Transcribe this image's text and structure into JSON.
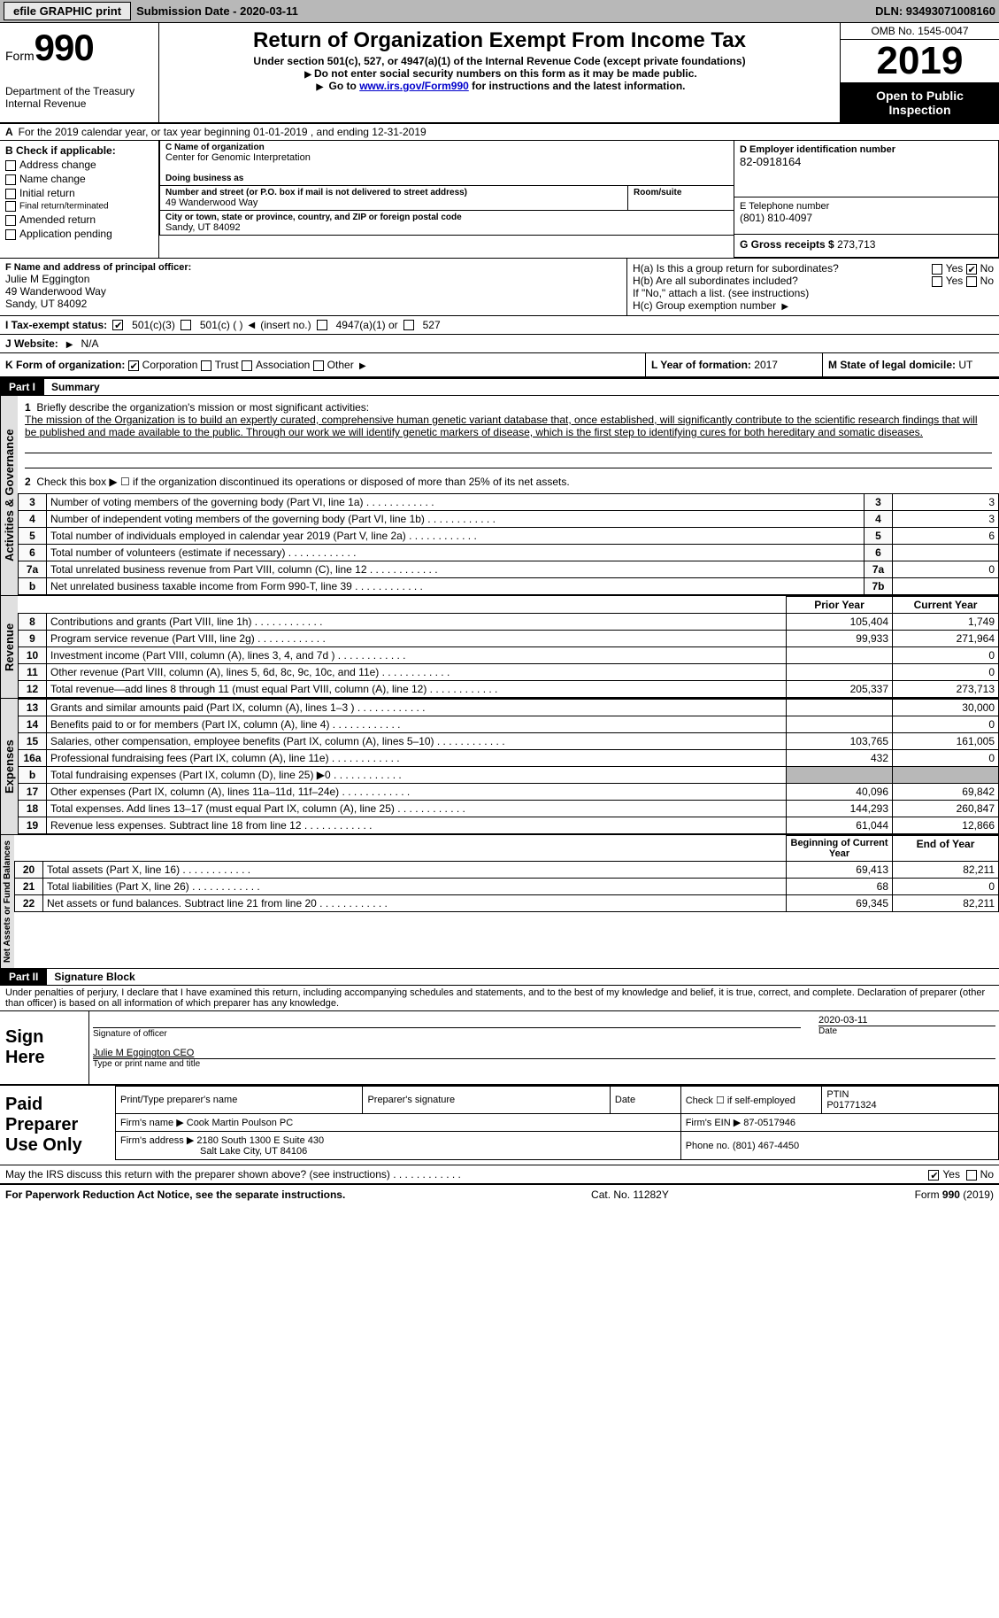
{
  "topbar": {
    "efile": "efile GRAPHIC print",
    "submission": "Submission Date - 2020-03-11",
    "dln": "DLN: 93493071008160"
  },
  "header": {
    "form_word": "Form",
    "form_no": "990",
    "dept": "Department of the Treasury",
    "irs": "Internal Revenue",
    "title": "Return of Organization Exempt From Income Tax",
    "sub1": "Under section 501(c), 527, or 4947(a)(1) of the Internal Revenue Code (except private foundations)",
    "sub2a": "Do not enter social security numbers on this form as it may be made public.",
    "sub2b_pre": "Go to ",
    "sub2b_link": "www.irs.gov/Form990",
    "sub2b_post": " for instructions and the latest information.",
    "omb": "OMB No. 1545-0047",
    "year": "2019",
    "open": "Open to Public Inspection"
  },
  "tyline": "For the 2019 calendar year, or tax year beginning 01-01-2019   , and ending 12-31-2019",
  "boxB": {
    "title": "B Check if applicable:",
    "items": [
      "Address change",
      "Name change",
      "Initial return",
      "Final return/terminated",
      "Amended return",
      "Application pending"
    ]
  },
  "boxC": {
    "lbl": "C Name of organization",
    "name": "Center for Genomic Interpretation",
    "dba_lbl": "Doing business as",
    "addr_lbl": "Number and street (or P.O. box if mail is not delivered to street address)",
    "room_lbl": "Room/suite",
    "addr": "49 Wanderwood Way",
    "city_lbl": "City or town, state or province, country, and ZIP or foreign postal code",
    "city": "Sandy, UT  84092"
  },
  "boxD": {
    "lbl": "D Employer identification number",
    "ein": "82-0918164"
  },
  "boxE": {
    "lbl": "E Telephone number",
    "phone": "(801) 810-4097"
  },
  "boxG": {
    "lbl": "G Gross receipts $",
    "val": "273,713"
  },
  "boxF": {
    "lbl": "F  Name and address of principal officer:",
    "name": "Julie M Eggington",
    "addr1": "49 Wanderwood Way",
    "addr2": "Sandy, UT  84092"
  },
  "boxH": {
    "ha": "H(a)  Is this a group return for subordinates?",
    "hb": "H(b)  Are all subordinates included?",
    "hnote": "If \"No,\" attach a list. (see instructions)",
    "hc": "H(c)  Group exemption number",
    "yes": "Yes",
    "no": "No"
  },
  "boxI": {
    "lbl": "I   Tax-exempt status:",
    "opts": [
      "501(c)(3)",
      "501(c) (  )",
      "(insert no.)",
      "4947(a)(1) or",
      "527"
    ]
  },
  "boxJ": {
    "lbl": "J   Website:",
    "val": "N/A"
  },
  "boxK": {
    "lbl": "K Form of organization:",
    "opts": [
      "Corporation",
      "Trust",
      "Association",
      "Other"
    ]
  },
  "boxL": {
    "lbl": "L Year of formation:",
    "val": "2017"
  },
  "boxM": {
    "lbl": "M State of legal domicile:",
    "val": "UT"
  },
  "part1": {
    "bar": "Part I",
    "title": "Summary",
    "vtab_ag": "Activities & Governance",
    "vtab_rev": "Revenue",
    "vtab_exp": "Expenses",
    "vtab_net": "Net Assets or Fund Balances",
    "line1_lbl": "Briefly describe the organization's mission or most significant activities:",
    "line1_text": "The mission of the Organization is to build an expertly curated, comprehensive human genetic variant database that, once established, will significantly contribute to the scientific research findings that will be published and made available to the public. Through our work we will identify genetic markers of disease, which is the first step to identifying cures for both hereditary and somatic diseases.",
    "line2": "Check this box ▶ ☐  if the organization discontinued its operations or disposed of more than 25% of its net assets.",
    "lines_simple": [
      {
        "n": "3",
        "t": "Number of voting members of the governing body (Part VI, line 1a)",
        "c": "3",
        "v": "3"
      },
      {
        "n": "4",
        "t": "Number of independent voting members of the governing body (Part VI, line 1b)",
        "c": "4",
        "v": "3"
      },
      {
        "n": "5",
        "t": "Total number of individuals employed in calendar year 2019 (Part V, line 2a)",
        "c": "5",
        "v": "6"
      },
      {
        "n": "6",
        "t": "Total number of volunteers (estimate if necessary)",
        "c": "6",
        "v": ""
      },
      {
        "n": "7a",
        "t": "Total unrelated business revenue from Part VIII, column (C), line 12",
        "c": "7a",
        "v": "0"
      },
      {
        "n": "b",
        "t": "Net unrelated business taxable income from Form 990-T, line 39",
        "c": "7b",
        "v": ""
      }
    ],
    "hdr_prior": "Prior Year",
    "hdr_curr": "Current Year",
    "lines_rev": [
      {
        "n": "8",
        "t": "Contributions and grants (Part VIII, line 1h)",
        "p": "105,404",
        "c": "1,749"
      },
      {
        "n": "9",
        "t": "Program service revenue (Part VIII, line 2g)",
        "p": "99,933",
        "c": "271,964"
      },
      {
        "n": "10",
        "t": "Investment income (Part VIII, column (A), lines 3, 4, and 7d )",
        "p": "",
        "c": "0"
      },
      {
        "n": "11",
        "t": "Other revenue (Part VIII, column (A), lines 5, 6d, 8c, 9c, 10c, and 11e)",
        "p": "",
        "c": "0"
      },
      {
        "n": "12",
        "t": "Total revenue—add lines 8 through 11 (must equal Part VIII, column (A), line 12)",
        "p": "205,337",
        "c": "273,713"
      }
    ],
    "lines_exp": [
      {
        "n": "13",
        "t": "Grants and similar amounts paid (Part IX, column (A), lines 1–3 )",
        "p": "",
        "c": "30,000"
      },
      {
        "n": "14",
        "t": "Benefits paid to or for members (Part IX, column (A), line 4)",
        "p": "",
        "c": "0"
      },
      {
        "n": "15",
        "t": "Salaries, other compensation, employee benefits (Part IX, column (A), lines 5–10)",
        "p": "103,765",
        "c": "161,005"
      },
      {
        "n": "16a",
        "t": "Professional fundraising fees (Part IX, column (A), line 11e)",
        "p": "432",
        "c": "0"
      },
      {
        "n": "b",
        "t": "Total fundraising expenses (Part IX, column (D), line 25) ▶0",
        "p": "GREY",
        "c": "GREY"
      },
      {
        "n": "17",
        "t": "Other expenses (Part IX, column (A), lines 11a–11d, 11f–24e)",
        "p": "40,096",
        "c": "69,842"
      },
      {
        "n": "18",
        "t": "Total expenses. Add lines 13–17 (must equal Part IX, column (A), line 25)",
        "p": "144,293",
        "c": "260,847"
      },
      {
        "n": "19",
        "t": "Revenue less expenses. Subtract line 18 from line 12",
        "p": "61,044",
        "c": "12,866"
      }
    ],
    "hdr_beg": "Beginning of Current Year",
    "hdr_end": "End of Year",
    "lines_net": [
      {
        "n": "20",
        "t": "Total assets (Part X, line 16)",
        "p": "69,413",
        "c": "82,211"
      },
      {
        "n": "21",
        "t": "Total liabilities (Part X, line 26)",
        "p": "68",
        "c": "0"
      },
      {
        "n": "22",
        "t": "Net assets or fund balances. Subtract line 21 from line 20",
        "p": "69,345",
        "c": "82,211"
      }
    ]
  },
  "part2": {
    "bar": "Part II",
    "title": "Signature Block",
    "decl": "Under penalties of perjury, I declare that I have examined this return, including accompanying schedules and statements, and to the best of my knowledge and belief, it is true, correct, and complete. Declaration of preparer (other than officer) is based on all information of which preparer has any knowledge.",
    "sign_here": "Sign Here",
    "sig_officer": "Signature of officer",
    "sig_date": "2020-03-11",
    "date_lbl": "Date",
    "name_title": "Julie M Eggington CEO",
    "name_lbl": "Type or print name and title"
  },
  "preparer": {
    "label": "Paid Preparer Use Only",
    "h1": "Print/Type preparer's name",
    "h2": "Preparer's signature",
    "h3": "Date",
    "h4": "Check ☐ if self-employed",
    "h5_lbl": "PTIN",
    "h5": "P01771324",
    "firm_lbl": "Firm's name   ▶",
    "firm": "Cook Martin Poulson PC",
    "ein_lbl": "Firm's EIN ▶",
    "ein": "87-0517946",
    "addr_lbl": "Firm's address ▶",
    "addr1": "2180 South 1300 E Suite 430",
    "addr2": "Salt Lake City, UT  84106",
    "phone_lbl": "Phone no.",
    "phone": "(801) 467-4450"
  },
  "discuss": {
    "q": "May the IRS discuss this return with the preparer shown above? (see instructions)",
    "yes": "Yes",
    "no": "No"
  },
  "footer": {
    "left": "For Paperwork Reduction Act Notice, see the separate instructions.",
    "mid": "Cat. No. 11282Y",
    "right_pre": "Form ",
    "right_b": "990",
    "right_post": " (2019)"
  }
}
